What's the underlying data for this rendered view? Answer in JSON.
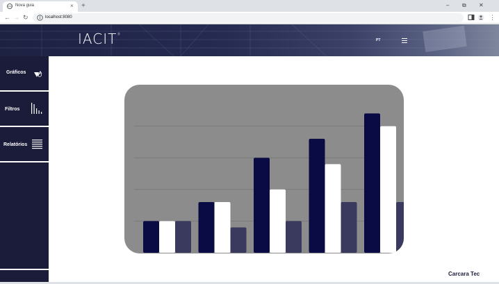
{
  "browser": {
    "tab_title": "Nova guia",
    "tab_close": "×",
    "new_tab": "+",
    "url": "localhost:8080",
    "controls": {
      "minimize": "–",
      "restore": "⧉",
      "close": "✕"
    },
    "nav": {
      "back": "←",
      "forward": "→",
      "reload": "↻",
      "menu": "⋮"
    }
  },
  "header": {
    "logo": "IACIT",
    "logo_mark": "®",
    "language": "PT"
  },
  "sidebar": {
    "items": [
      {
        "label": "Gráficos",
        "icon": "chart-icon"
      },
      {
        "label": "Filtros",
        "icon": "filter-bars-icon"
      },
      {
        "label": "Relatórios",
        "icon": "report-lines-icon"
      }
    ]
  },
  "footer": {
    "brand": "Carcara Tec"
  },
  "chart_data": {
    "type": "bar",
    "title": "",
    "xlabel": "",
    "ylabel": "",
    "categories": [
      "",
      "",
      "",
      "",
      ""
    ],
    "ylim": [
      0,
      50
    ],
    "grid": true,
    "series": [
      {
        "values": [
          10,
          16,
          30,
          36,
          44
        ],
        "color": "#0a0a45"
      },
      {
        "values": [
          10,
          16,
          20,
          28,
          40
        ],
        "color": "#ffffff"
      },
      {
        "values": [
          10,
          8,
          10,
          16,
          16
        ],
        "color": "#3a3a5e"
      }
    ],
    "colors": {
      "panel": "#8c8c8c",
      "grid": "#7a7a7a"
    }
  }
}
